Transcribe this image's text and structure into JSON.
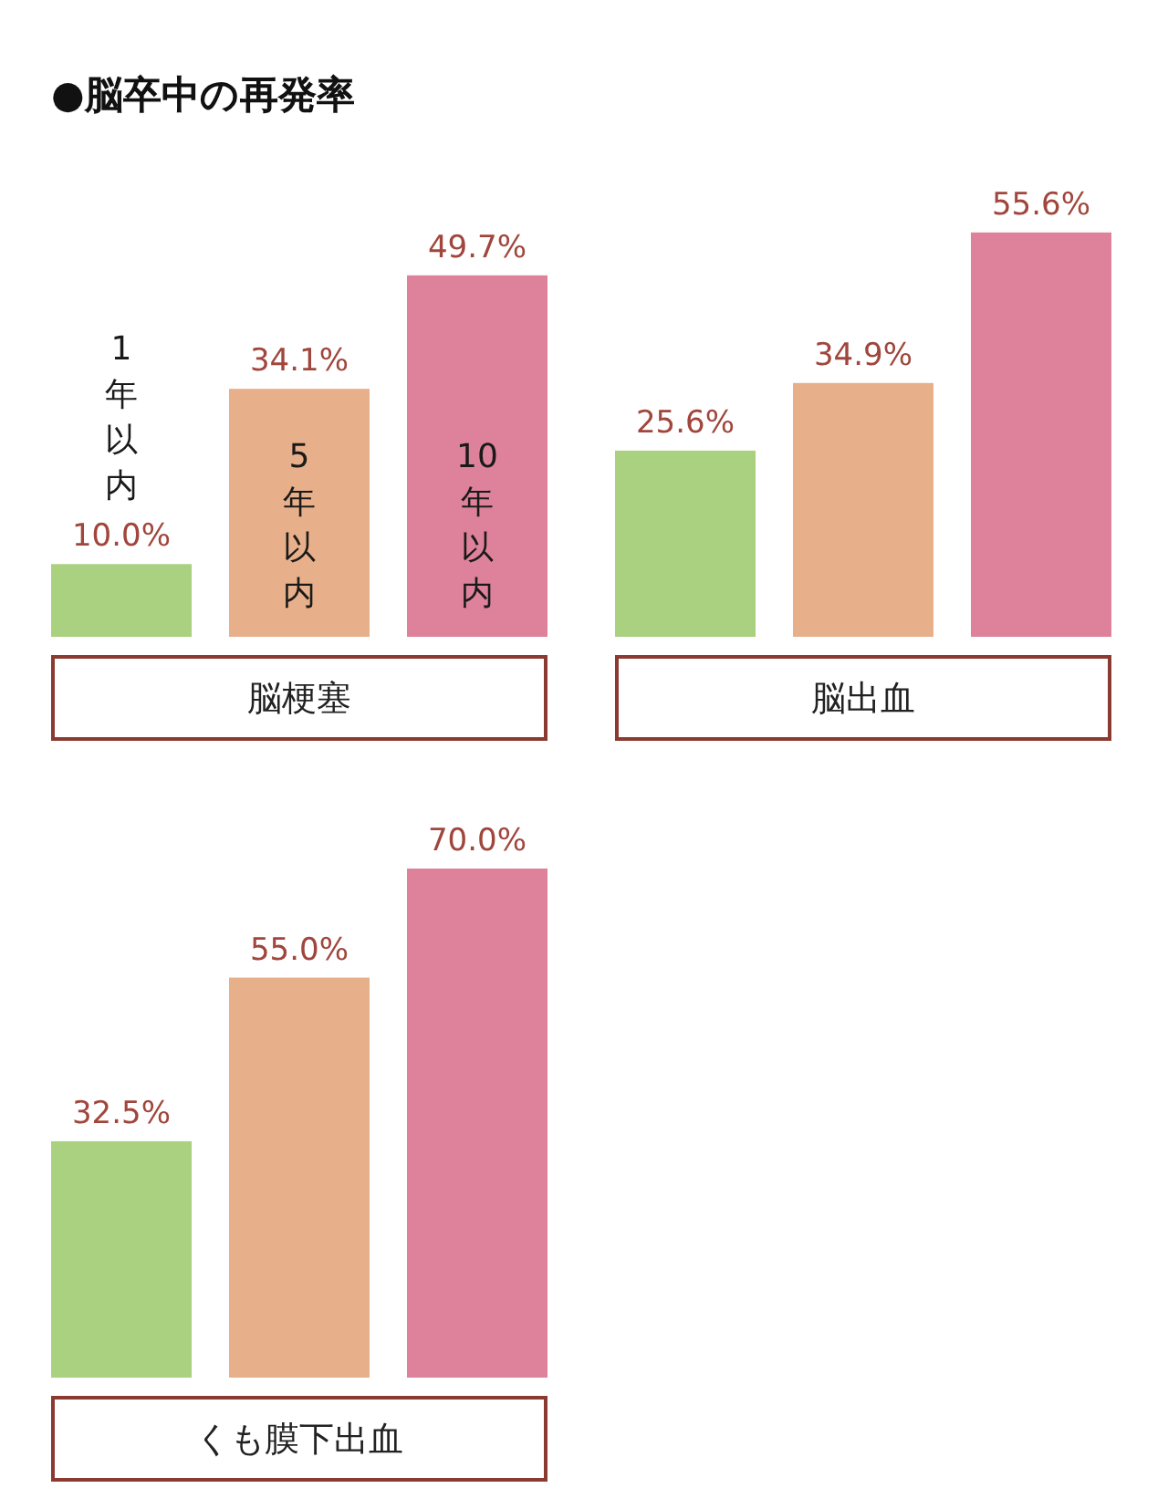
{
  "chart_data": [
    {
      "type": "bar",
      "title": "●脳卒中の再発率",
      "categories": [
        "1年以内",
        "5年以内",
        "10年以内"
      ],
      "values": [
        10.0,
        34.1,
        49.7
      ],
      "colors": [
        "#a9d17f",
        "#e8b08a",
        "#de829c"
      ],
      "value_labels": [
        "10.0%",
        "34.1%",
        "49.7%"
      ],
      "xlabel": "脳梗塞"
    },
    {
      "type": "bar",
      "categories": [
        null,
        null,
        null
      ],
      "values": [
        25.6,
        34.9,
        55.6
      ],
      "colors": [
        "#a9d17f",
        "#e8b08a",
        "#de829c"
      ],
      "value_labels": [
        "25.6%",
        "34.9%",
        "55.6%"
      ],
      "xlabel": "脳出血"
    },
    {
      "type": "bar",
      "categories": [
        null,
        null,
        null
      ],
      "values": [
        32.5,
        55.0,
        70.0
      ],
      "colors": [
        "#a9d17f",
        "#e8b08a",
        "#de829c"
      ],
      "value_labels": [
        "32.5%",
        "55.0%",
        "70.0%"
      ],
      "xlabel": "くも膜下出血"
    }
  ]
}
